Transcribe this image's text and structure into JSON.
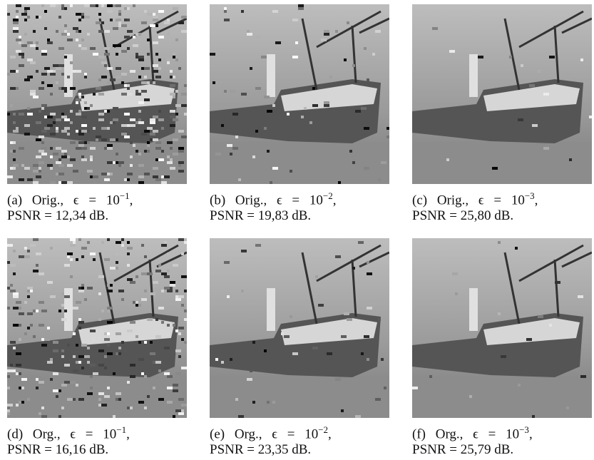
{
  "panels": [
    {
      "prefix": "(a) Orig., ϵ = 10",
      "exponent": "−1",
      "suffix": ",",
      "line2": "PSNR = 12,34 dB."
    },
    {
      "prefix": "(b) Orig., ϵ = 10",
      "exponent": "−2",
      "suffix": ",",
      "line2": "PSNR = 19,83 dB."
    },
    {
      "prefix": "(c) Orig., ϵ = 10",
      "exponent": "−3",
      "suffix": ",",
      "line2": "PSNR = 25,80 dB."
    },
    {
      "prefix": "(d) Org., ϵ = 10",
      "exponent": "−1",
      "suffix": ",",
      "line2": "PSNR = 16,16 dB."
    },
    {
      "prefix": "(e) Org., ϵ = 10",
      "exponent": "−2",
      "suffix": ",",
      "line2": "PSNR = 23,35 dB."
    },
    {
      "prefix": "(f) Org., ϵ = 10",
      "exponent": "−3",
      "suffix": ",",
      "line2": "PSNR = 25,79 dB."
    }
  ]
}
